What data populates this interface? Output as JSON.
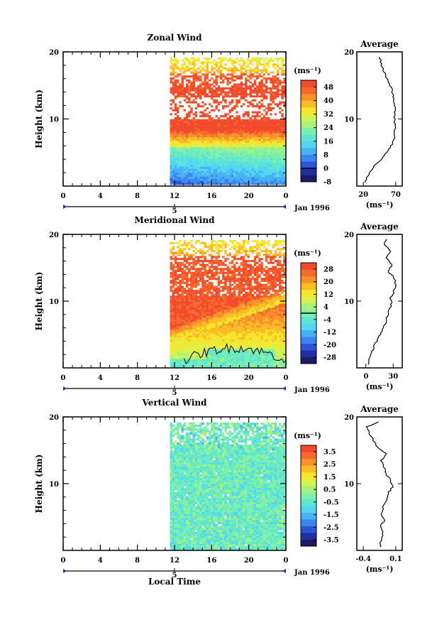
{
  "chart_data": [
    {
      "type": "heatmap",
      "title": "Zonal Wind",
      "ylabel": "Height (km)",
      "ylim": [
        0,
        20
      ],
      "yticks": [
        "20",
        "10"
      ],
      "x_ticks": [
        "0",
        "4",
        "8",
        "12",
        "16",
        "20",
        "0"
      ],
      "date_tick": "5",
      "date_label": "Jan 1996",
      "data_start_hour": 11.5,
      "colorbar": {
        "unit": "(ms⁻¹)",
        "min": -8,
        "max": 52,
        "labels": [
          "48",
          "40",
          "32",
          "24",
          "16",
          "8",
          "0",
          "-8"
        ],
        "contour_value": 0,
        "colors": [
          "#1a1a66",
          "#1f2fa0",
          "#2b55d6",
          "#3a85ee",
          "#47b1f5",
          "#52d6f2",
          "#5fe6cf",
          "#7cf0a8",
          "#a9f27a",
          "#d7f24f",
          "#f7e52c",
          "#fbbd22",
          "#f9912a",
          "#f56a2c",
          "#f24a2a"
        ]
      },
      "profile": {
        "title": "Average",
        "unit": "(ms⁻¹)",
        "xticks": [
          "20",
          "70"
        ],
        "xlim": [
          10,
          80
        ],
        "heights": [
          0.5,
          1.5,
          2.5,
          3.5,
          4.5,
          5.5,
          6.5,
          7.5,
          8.5,
          9.5,
          10.5,
          11.5,
          12.5,
          13.5,
          14.5,
          15.5,
          16.5,
          17.5,
          18.5,
          19.5
        ],
        "values": [
          22,
          26,
          33,
          42,
          52,
          60,
          66,
          68,
          69,
          68,
          68,
          69,
          67,
          66,
          64,
          58,
          55,
          50,
          47,
          45
        ]
      }
    },
    {
      "type": "heatmap",
      "title": "Meridional Wind",
      "ylabel": "Height (km)",
      "ylim": [
        0,
        20
      ],
      "yticks": [
        "20",
        "10"
      ],
      "x_ticks": [
        "0",
        "4",
        "8",
        "12",
        "16",
        "20",
        "0"
      ],
      "date_tick": "5",
      "date_label": "Jan 1996",
      "data_start_hour": 11.5,
      "colorbar": {
        "unit": "(ms⁻¹)",
        "min": -32,
        "max": 32,
        "labels": [
          "28",
          "20",
          "12",
          "4",
          "-4",
          "-12",
          "-20",
          "-28"
        ],
        "contour_value": 0,
        "colors": [
          "#1a1a66",
          "#1f2fa0",
          "#2b55d6",
          "#3a85ee",
          "#47b1f5",
          "#52d6f2",
          "#5fe6cf",
          "#7cf0a8",
          "#a9f27a",
          "#d7f24f",
          "#f7e52c",
          "#fbbd22",
          "#f9912a",
          "#f56a2c",
          "#f24a2a"
        ]
      },
      "profile": {
        "title": "Average",
        "unit": "(ms⁻¹)",
        "xticks": [
          "0",
          "30"
        ],
        "xlim": [
          -10,
          40
        ],
        "heights": [
          0.5,
          1.5,
          2.5,
          3.5,
          4.5,
          5.5,
          6.5,
          7.5,
          8.5,
          9.5,
          10.5,
          11.5,
          12.5,
          13.5,
          14.5,
          15.5,
          16.5,
          17.5,
          18.5,
          19.5
        ],
        "values": [
          2,
          4,
          7,
          10,
          14,
          18,
          21,
          23,
          25,
          28,
          27,
          31,
          33,
          31,
          24,
          29,
          22,
          27,
          20,
          24
        ]
      }
    },
    {
      "type": "heatmap",
      "title": "Vertical Wind",
      "ylabel": "Height (km)",
      "ylim": [
        0,
        20
      ],
      "yticks": [
        "20",
        "10"
      ],
      "x_ticks": [
        "0",
        "4",
        "8",
        "12",
        "16",
        "20",
        "0"
      ],
      "date_tick": "5",
      "date_label": "Jan 1996",
      "data_start_hour": 11.5,
      "colorbar": {
        "unit": "(ms⁻¹)",
        "min": -4,
        "max": 4,
        "labels": [
          "3.5",
          "2.5",
          "1.5",
          "0.5",
          "-0.5",
          "-1.5",
          "-2.5",
          "-3.5"
        ],
        "contour_value": null,
        "colors": [
          "#1a1a66",
          "#1f2fa0",
          "#2b55d6",
          "#3a85ee",
          "#47b1f5",
          "#52d6f2",
          "#5fe6cf",
          "#7cf0a8",
          "#a9f27a",
          "#d7f24f",
          "#f7e52c",
          "#fbbd22",
          "#f9912a",
          "#f56a2c",
          "#f24a2a"
        ]
      },
      "profile": {
        "title": "Average",
        "unit": "(ms⁻¹)",
        "xticks": [
          "-0.4",
          "0.1"
        ],
        "xlim": [
          -0.5,
          0.2
        ],
        "heights": [
          0.5,
          1.5,
          2.5,
          3.5,
          4.5,
          5.5,
          6.5,
          7.5,
          8.5,
          9.5,
          10.5,
          11.5,
          12.5,
          13.5,
          14.5,
          15.5,
          16.5,
          17.5,
          18.5,
          19.5
        ],
        "values": [
          -0.15,
          -0.12,
          -0.1,
          -0.14,
          -0.08,
          -0.12,
          -0.1,
          -0.05,
          -0.02,
          0.05,
          0.02,
          -0.05,
          -0.08,
          -0.12,
          -0.05,
          -0.18,
          -0.25,
          -0.3,
          -0.35,
          -0.1
        ]
      }
    }
  ],
  "shared_xlabel": "Local Time"
}
